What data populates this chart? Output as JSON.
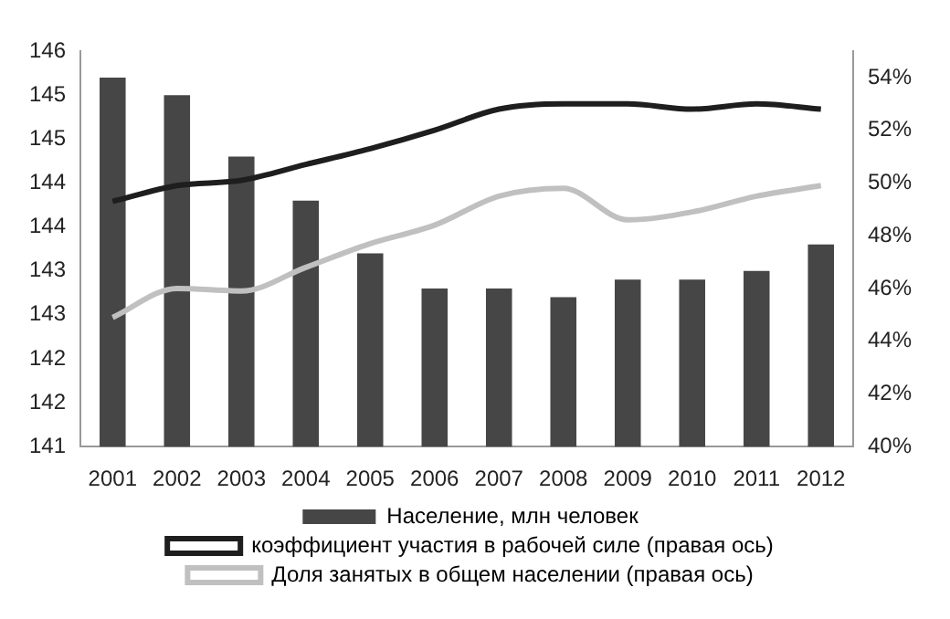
{
  "chart_data": {
    "type": "bar",
    "categories": [
      "2001",
      "2002",
      "2003",
      "2004",
      "2005",
      "2006",
      "2007",
      "2008",
      "2009",
      "2010",
      "2011",
      "2012"
    ],
    "series": [
      {
        "name": "Население, млн человек",
        "color": "#464646",
        "values": [
          145.2,
          145.0,
          144.3,
          143.8,
          143.2,
          142.8,
          142.8,
          142.7,
          142.9,
          142.9,
          143.0,
          143.3
        ]
      },
      {
        "name": "коэффициент участия в рабочей силе (правая ось)",
        "type": "line",
        "axis": "y2",
        "color": "#1e1e1e",
        "values": [
          49.3,
          49.9,
          50.1,
          50.7,
          51.3,
          52.0,
          52.8,
          53.0,
          53.0,
          52.8,
          53.0,
          52.8
        ]
      },
      {
        "name": "Доля занятых в общем населении (правая ось)",
        "type": "line",
        "axis": "y2",
        "color": "#c0c0c0",
        "values": [
          44.9,
          46.0,
          45.9,
          46.8,
          47.7,
          48.4,
          49.5,
          49.8,
          48.6,
          48.9,
          49.5,
          49.9
        ]
      }
    ],
    "ylim": [
      141,
      145.5
    ],
    "yticks": [
      141,
      {
        "value": 141.5,
        "label": "142"
      },
      142,
      {
        "value": 142.5,
        "label": "143"
      },
      143,
      {
        "value": 143.5,
        "label": "144"
      },
      144,
      {
        "value": 144.5,
        "label": "145"
      },
      145,
      {
        "value": 145.5,
        "label": "146"
      }
    ],
    "y2lim": [
      40,
      55
    ],
    "y2ticks": [
      {
        "value": 40,
        "label": "40%"
      },
      {
        "value": 42,
        "label": "42%"
      },
      {
        "value": 44,
        "label": "44%"
      },
      {
        "value": 46,
        "label": "46%"
      },
      {
        "value": 48,
        "label": "48%"
      },
      {
        "value": 50,
        "label": "50%"
      },
      {
        "value": 52,
        "label": "52%"
      },
      {
        "value": 54,
        "label": "54%"
      }
    ],
    "grid": false,
    "legend": "bottom",
    "marker": "none"
  }
}
